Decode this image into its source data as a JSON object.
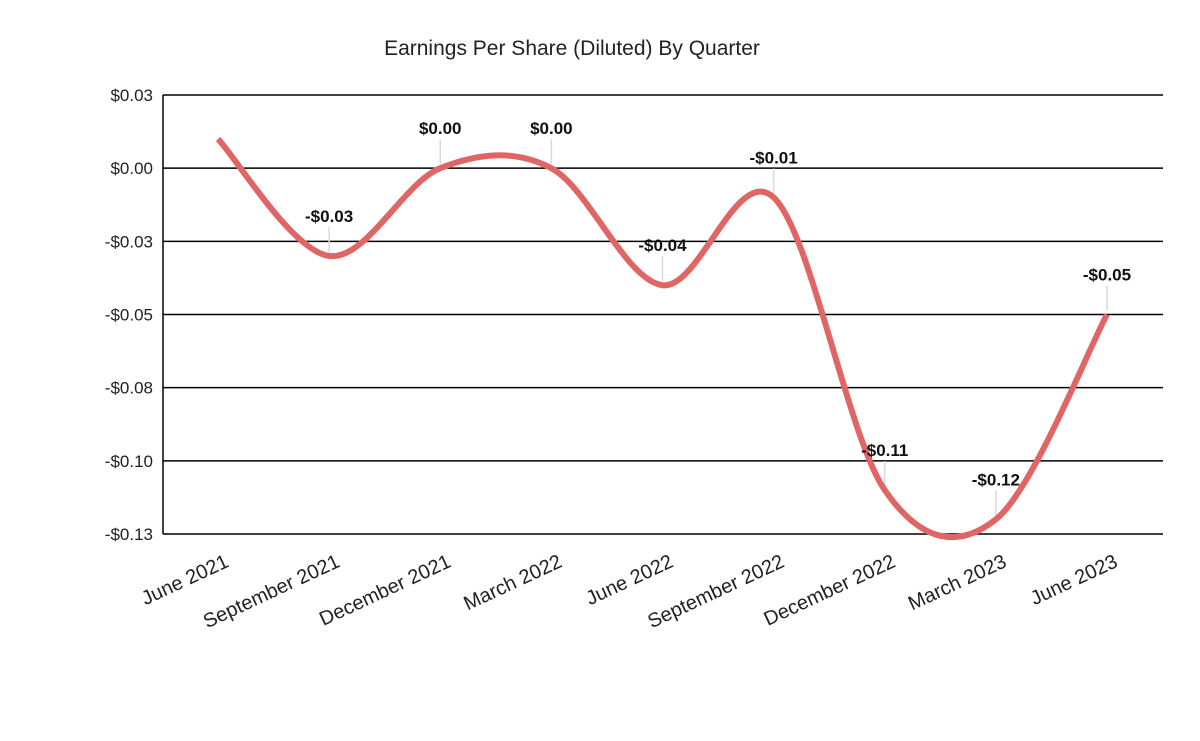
{
  "chart_data": {
    "type": "line",
    "title": "Earnings Per Share (Diluted) By Quarter",
    "xlabel": "",
    "ylabel": "",
    "categories": [
      "June 2021",
      "September 2021",
      "December 2021",
      "March 2022",
      "June 2022",
      "September 2022",
      "December 2022",
      "March 2023",
      "June 2023"
    ],
    "series": [
      {
        "values": [
          0.01,
          -0.03,
          0.0,
          0.0,
          -0.04,
          -0.01,
          -0.11,
          -0.12,
          -0.05
        ],
        "data_labels": [
          "",
          "-$0.03",
          "$0.00",
          "$0.00",
          "-$0.04",
          "-$0.01",
          "-$0.11",
          "-$0.12",
          "-$0.05"
        ]
      }
    ],
    "ylim": [
      -0.125,
      0.025
    ],
    "y_ticks": [
      0.025,
      0.0,
      -0.025,
      -0.05,
      -0.075,
      -0.1,
      -0.125
    ],
    "y_tick_labels": [
      "$0.03",
      "$0.00",
      "-$0.03",
      "-$0.05",
      "-$0.08",
      "-$0.10",
      "-$0.13"
    ],
    "grid": true,
    "smooth": true,
    "line_color": "#e06666",
    "legend": "none"
  }
}
